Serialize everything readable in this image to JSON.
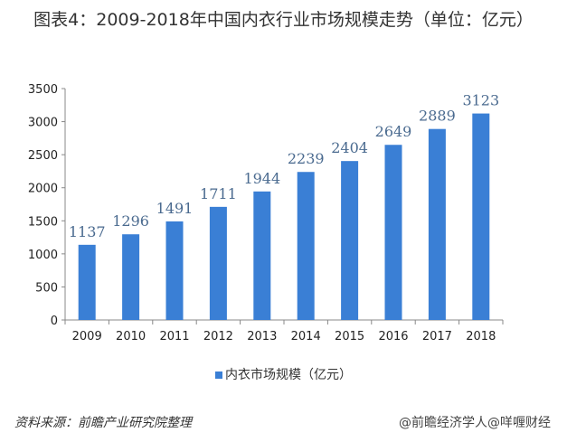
{
  "chart_data": {
    "type": "bar",
    "title": "图表4：2009-2018年中国内衣行业市场规模走势（单位：亿元）",
    "categories": [
      "2009",
      "2010",
      "2011",
      "2012",
      "2013",
      "2014",
      "2015",
      "2016",
      "2017",
      "2018"
    ],
    "series": [
      {
        "name": "内衣市场规模（亿元）",
        "values": [
          1137,
          1296,
          1491,
          1711,
          1944,
          2239,
          2404,
          2649,
          2889,
          3123
        ]
      }
    ],
    "ylim": [
      0,
      3500
    ],
    "yticks": [
      0,
      500,
      1000,
      1500,
      2000,
      2500,
      3000,
      3500
    ],
    "grid": false,
    "legend": "bottom",
    "colors": {
      "bar": "#3a7fd5",
      "label": "#4a6a8f"
    }
  },
  "source": "资料来源：前瞻产业研究院整理",
  "watermark": "@前瞻经济学人@咩喱财经"
}
